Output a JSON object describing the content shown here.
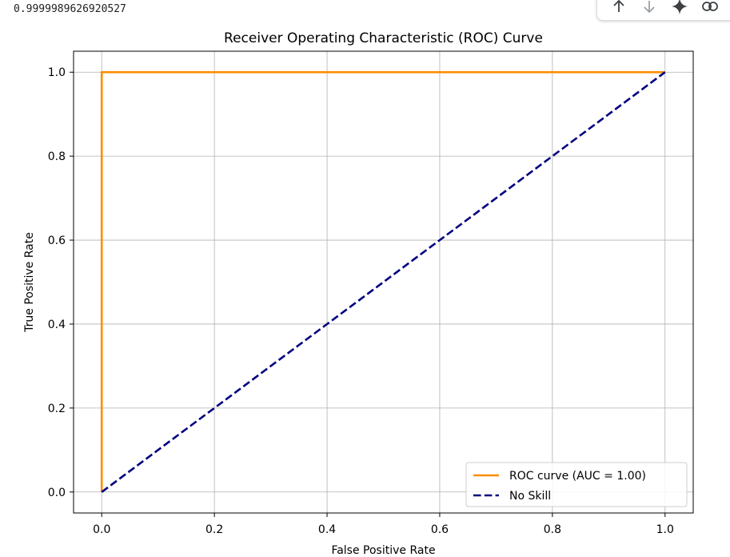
{
  "cell": {
    "output_text": "0.9999989626920527"
  },
  "toolbar": {
    "icons": [
      "arrow-up-icon",
      "arrow-down-icon",
      "sparkle-icon",
      "link-icon"
    ]
  },
  "chart_data": {
    "type": "line",
    "title": "Receiver Operating Characteristic (ROC) Curve",
    "xlabel": "False Positive Rate",
    "ylabel": "True Positive Rate",
    "xlim": [
      -0.05,
      1.05
    ],
    "ylim": [
      -0.05,
      1.05
    ],
    "xticks": [
      0.0,
      0.2,
      0.4,
      0.6,
      0.8,
      1.0
    ],
    "yticks": [
      0.0,
      0.2,
      0.4,
      0.6,
      0.8,
      1.0
    ],
    "xtick_labels": [
      "0.0",
      "0.2",
      "0.4",
      "0.6",
      "0.8",
      "1.0"
    ],
    "ytick_labels": [
      "0.0",
      "0.2",
      "0.4",
      "0.6",
      "0.8",
      "1.0"
    ],
    "grid": true,
    "legend_position": "bottom-right",
    "series": [
      {
        "name": "ROC curve (AUC = 1.00)",
        "color": "#ff8c00",
        "style": "solid",
        "x": [
          0.0,
          0.0,
          1.0
        ],
        "y": [
          0.0,
          1.0,
          1.0
        ]
      },
      {
        "name": "No Skill",
        "color": "#000080",
        "style": "dashed",
        "x": [
          0.0,
          1.0
        ],
        "y": [
          0.0,
          1.0
        ]
      }
    ]
  }
}
